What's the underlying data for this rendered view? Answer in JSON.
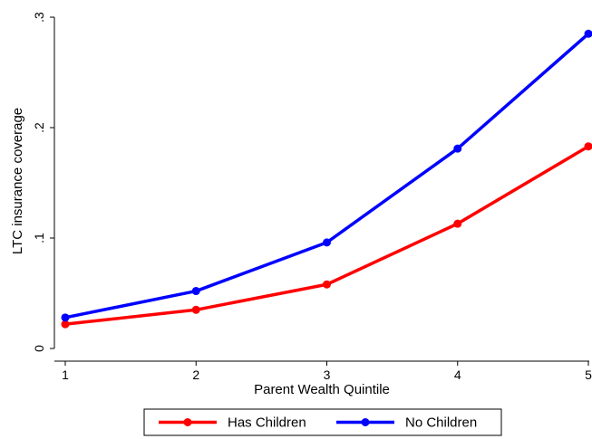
{
  "chart_data": {
    "type": "line",
    "title": "",
    "xlabel": "Parent Wealth Quintile",
    "ylabel": "LTC insurance coverage",
    "x": [
      1,
      2,
      3,
      4,
      5
    ],
    "x_tick_labels": [
      "1",
      "2",
      "3",
      "4",
      "5"
    ],
    "y_ticks": [
      0,
      0.1,
      0.2,
      0.3
    ],
    "y_tick_labels": [
      "0",
      ".1",
      ".2",
      ".3"
    ],
    "xlim": [
      1,
      5
    ],
    "ylim": [
      0,
      0.3
    ],
    "grid": false,
    "legend_position": "bottom",
    "series": [
      {
        "name": "Has Children",
        "color": "#ff0000",
        "values": [
          0.022,
          0.035,
          0.058,
          0.113,
          0.183
        ]
      },
      {
        "name": "No Children",
        "color": "#0000ff",
        "values": [
          0.028,
          0.052,
          0.096,
          0.181,
          0.285
        ]
      }
    ]
  }
}
